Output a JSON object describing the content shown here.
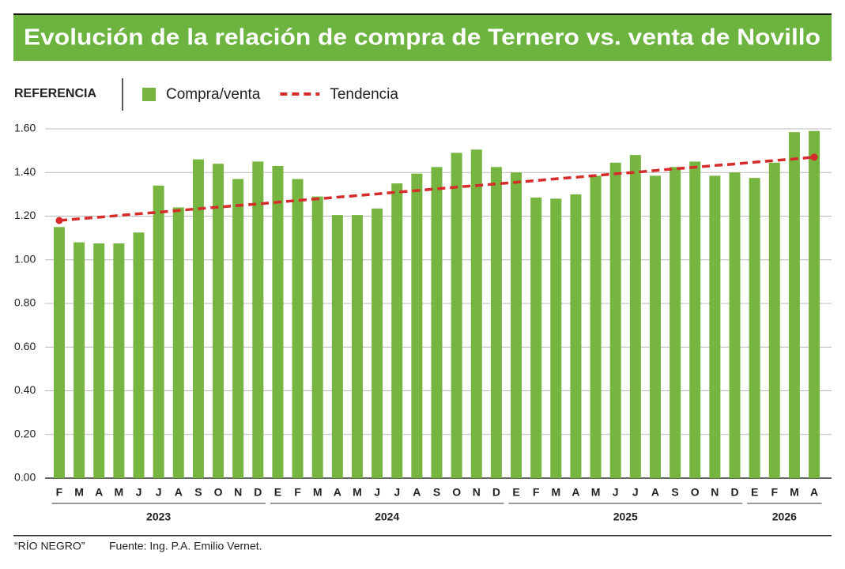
{
  "chart_data": {
    "type": "bar",
    "title": "Evolución de la relación de compra de Ternero vs. venta de Novillo",
    "legend_title": "REFERENCIA",
    "groups": [
      {
        "name": "2023",
        "categories": [
          "F",
          "M",
          "A",
          "M",
          "J",
          "J",
          "A",
          "S",
          "O",
          "N",
          "D"
        ]
      },
      {
        "name": "2024",
        "categories": [
          "E",
          "F",
          "M",
          "A",
          "M",
          "J",
          "J",
          "A",
          "S",
          "O",
          "N",
          "D"
        ]
      },
      {
        "name": "2025",
        "categories": [
          "E",
          "F",
          "M",
          "A",
          "M",
          "J",
          "J",
          "A",
          "S",
          "O",
          "N",
          "D"
        ]
      },
      {
        "name": "2026",
        "categories": [
          "E",
          "F",
          "M",
          "A"
        ]
      }
    ],
    "series": [
      {
        "name": "Compra/venta",
        "type": "bar",
        "color": "#76b53f",
        "values": [
          1.15,
          1.08,
          1.075,
          1.075,
          1.125,
          1.34,
          1.24,
          1.46,
          1.44,
          1.37,
          1.45,
          1.43,
          1.37,
          1.29,
          1.205,
          1.205,
          1.235,
          1.35,
          1.395,
          1.425,
          1.49,
          1.505,
          1.425,
          1.4,
          1.285,
          1.28,
          1.3,
          1.385,
          1.445,
          1.48,
          1.385,
          1.425,
          1.45,
          1.385,
          1.4,
          1.375,
          1.445,
          1.585,
          1.59
        ]
      },
      {
        "name": "Tendencia",
        "type": "line",
        "color": "#d62b2b",
        "values": [
          1.18,
          1.188,
          1.195,
          1.203,
          1.211,
          1.218,
          1.226,
          1.234,
          1.241,
          1.249,
          1.256,
          1.264,
          1.272,
          1.279,
          1.287,
          1.294,
          1.302,
          1.31,
          1.317,
          1.325,
          1.333,
          1.34,
          1.348,
          1.355,
          1.363,
          1.371,
          1.378,
          1.386,
          1.394,
          1.401,
          1.409,
          1.417,
          1.424,
          1.432,
          1.439,
          1.447,
          1.455,
          1.462,
          1.47
        ]
      }
    ],
    "ylim": [
      0,
      1.6
    ],
    "yticks": [
      {
        "value": 0,
        "label": "0.00"
      },
      {
        "value": 0.2,
        "label": "0.20"
      },
      {
        "value": 0.4,
        "label": "0.40"
      },
      {
        "value": 0.6,
        "label": "0.60"
      },
      {
        "value": 0.8,
        "label": "0.80"
      },
      {
        "value": 1,
        "label": "1.00"
      },
      {
        "value": 1.2,
        "label": "1.20"
      },
      {
        "value": 1.4,
        "label": "1.40"
      },
      {
        "value": 1.6,
        "label": "1.60"
      }
    ],
    "grid": true,
    "footer": {
      "brand": "“RÍO NEGRO”",
      "source": "Fuente: Ing. P.A. Emilio Vernet."
    }
  }
}
